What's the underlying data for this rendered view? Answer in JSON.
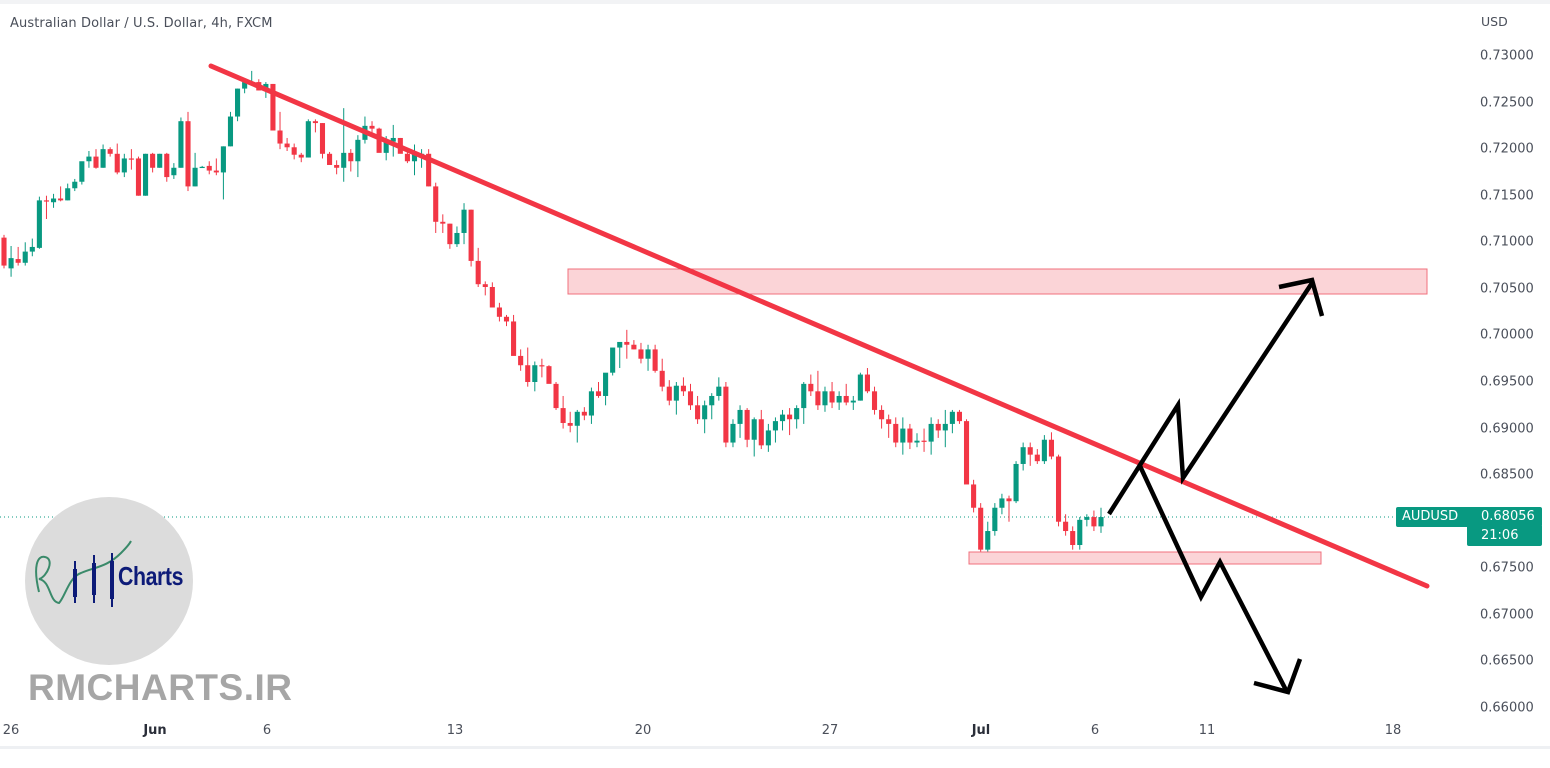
{
  "header": {
    "title": "Australian Dollar / U.S. Dollar, 4h, FXCM"
  },
  "price_axis": {
    "unit": "USD",
    "labels": [
      "0.73000",
      "0.72500",
      "0.72000",
      "0.71500",
      "0.71000",
      "0.70500",
      "0.70000",
      "0.69500",
      "0.69000",
      "0.68500",
      "0.68000",
      "0.67500",
      "0.67000",
      "0.66500",
      "0.66000"
    ]
  },
  "time_axis": {
    "labels": [
      {
        "text": "26",
        "x": 5,
        "major": false
      },
      {
        "text": "Jun",
        "x": 155,
        "major": true
      },
      {
        "text": "6",
        "x": 267,
        "major": false
      },
      {
        "text": "13",
        "x": 455,
        "major": false
      },
      {
        "text": "20",
        "x": 643,
        "major": false
      },
      {
        "text": "27",
        "x": 830,
        "major": false
      },
      {
        "text": "Jul",
        "x": 981,
        "major": true
      },
      {
        "text": "6",
        "x": 1095,
        "major": false
      },
      {
        "text": "11",
        "x": 1207,
        "major": false
      },
      {
        "text": "18",
        "x": 1393,
        "major": false
      }
    ]
  },
  "last_price": {
    "symbol": "AUDUSD",
    "price": "0.68056",
    "countdown": "21:06",
    "color": "#089981"
  },
  "colors": {
    "up": "#089981",
    "down": "#f23645",
    "trendline": "#f23645",
    "zone_fill": "#fbd4d7",
    "zone_border": "#f0707c",
    "projection": "#000000"
  },
  "watermark": {
    "logo_text": "Charts",
    "site": "RMCHARTS.IR"
  },
  "chart_data": {
    "type": "candlestick",
    "title": "Australian Dollar / U.S. Dollar, 4h, FXCM",
    "symbol": "AUDUSD",
    "timeframe": "4h",
    "source": "FXCM",
    "xlabel": "",
    "ylabel": "USD",
    "ylim": [
      0.66,
      0.73
    ],
    "y_ticks": [
      0.73,
      0.725,
      0.72,
      0.715,
      0.71,
      0.705,
      0.7,
      0.695,
      0.69,
      0.685,
      0.68,
      0.675,
      0.67,
      0.665,
      0.66
    ],
    "x_ticks": [
      "26",
      "Jun",
      "6",
      "13",
      "20",
      "27",
      "Jul",
      "6",
      "11",
      "18"
    ],
    "grid": false,
    "last_price": 0.68056,
    "candles": [
      [
        0.7105,
        0.7108,
        0.7072,
        0.7075
      ],
      [
        0.7072,
        0.7096,
        0.7063,
        0.7083
      ],
      [
        0.7082,
        0.7095,
        0.7075,
        0.7078
      ],
      [
        0.7078,
        0.71,
        0.7075,
        0.709
      ],
      [
        0.709,
        0.7104,
        0.7085,
        0.7095
      ],
      [
        0.7094,
        0.7149,
        0.7093,
        0.7145
      ],
      [
        0.7145,
        0.715,
        0.7125,
        0.7144
      ],
      [
        0.7143,
        0.7152,
        0.7137,
        0.7147
      ],
      [
        0.7147,
        0.716,
        0.7144,
        0.7145
      ],
      [
        0.7145,
        0.7163,
        0.7145,
        0.7158
      ],
      [
        0.7158,
        0.7168,
        0.7155,
        0.7165
      ],
      [
        0.7165,
        0.7185,
        0.7162,
        0.7187
      ],
      [
        0.7187,
        0.7198,
        0.718,
        0.7192
      ],
      [
        0.7192,
        0.72,
        0.7179,
        0.718
      ],
      [
        0.718,
        0.7205,
        0.718,
        0.72
      ],
      [
        0.72,
        0.7202,
        0.7192,
        0.7195
      ],
      [
        0.7195,
        0.7206,
        0.7173,
        0.7175
      ],
      [
        0.7175,
        0.7195,
        0.717,
        0.719
      ],
      [
        0.719,
        0.72,
        0.7178,
        0.7189
      ],
      [
        0.719,
        0.7192,
        0.715,
        0.715
      ],
      [
        0.715,
        0.7195,
        0.715,
        0.7195
      ],
      [
        0.7195,
        0.7196,
        0.7175,
        0.718
      ],
      [
        0.718,
        0.7195,
        0.718,
        0.7195
      ],
      [
        0.7195,
        0.7196,
        0.7165,
        0.717
      ],
      [
        0.7172,
        0.7185,
        0.7168,
        0.718
      ],
      [
        0.718,
        0.7234,
        0.718,
        0.723
      ],
      [
        0.723,
        0.724,
        0.7155,
        0.716
      ],
      [
        0.716,
        0.7196,
        0.716,
        0.718
      ],
      [
        0.718,
        0.7182,
        0.718,
        0.7181
      ],
      [
        0.7182,
        0.7187,
        0.7173,
        0.7177
      ],
      [
        0.7177,
        0.719,
        0.7172,
        0.7175
      ],
      [
        0.7175,
        0.7203,
        0.7146,
        0.7203
      ],
      [
        0.7203,
        0.724,
        0.7203,
        0.7235
      ],
      [
        0.7235,
        0.7265,
        0.723,
        0.7265
      ],
      [
        0.7265,
        0.7275,
        0.726,
        0.7272
      ],
      [
        0.7272,
        0.7284,
        0.727,
        0.7272
      ],
      [
        0.7272,
        0.7275,
        0.7263,
        0.7263
      ],
      [
        0.7263,
        0.7272,
        0.7255,
        0.727
      ],
      [
        0.727,
        0.727,
        0.722,
        0.722
      ],
      [
        0.722,
        0.724,
        0.72,
        0.7206
      ],
      [
        0.7206,
        0.7212,
        0.7198,
        0.7202
      ],
      [
        0.7202,
        0.7206,
        0.7189,
        0.7194
      ],
      [
        0.7194,
        0.7196,
        0.7186,
        0.7191
      ],
      [
        0.7191,
        0.7232,
        0.7191,
        0.723
      ],
      [
        0.723,
        0.7232,
        0.7218,
        0.7228
      ],
      [
        0.7228,
        0.7228,
        0.719,
        0.7195
      ],
      [
        0.7195,
        0.7197,
        0.7187,
        0.7183
      ],
      [
        0.7183,
        0.7188,
        0.7173,
        0.718
      ],
      [
        0.718,
        0.7244,
        0.7165,
        0.7196
      ],
      [
        0.7196,
        0.72,
        0.7176,
        0.7187
      ],
      [
        0.7187,
        0.7215,
        0.717,
        0.721
      ],
      [
        0.721,
        0.7235,
        0.7206,
        0.7225
      ],
      [
        0.7225,
        0.723,
        0.7215,
        0.7222
      ],
      [
        0.7222,
        0.7223,
        0.7198,
        0.7196
      ],
      [
        0.7196,
        0.7214,
        0.7188,
        0.7208
      ],
      [
        0.7208,
        0.7226,
        0.7192,
        0.7212
      ],
      [
        0.7212,
        0.7212,
        0.7196,
        0.7195
      ],
      [
        0.7195,
        0.7198,
        0.7185,
        0.7187
      ],
      [
        0.7187,
        0.7205,
        0.7172,
        0.7195
      ],
      [
        0.7195,
        0.72,
        0.718,
        0.7195
      ],
      [
        0.7195,
        0.72,
        0.716,
        0.716
      ],
      [
        0.716,
        0.7164,
        0.711,
        0.7122
      ],
      [
        0.7122,
        0.713,
        0.711,
        0.712
      ],
      [
        0.712,
        0.712,
        0.7093,
        0.7098
      ],
      [
        0.7098,
        0.7117,
        0.7095,
        0.711
      ],
      [
        0.711,
        0.7142,
        0.7098,
        0.7135
      ],
      [
        0.7135,
        0.7135,
        0.7074,
        0.708
      ],
      [
        0.708,
        0.7094,
        0.7052,
        0.7055
      ],
      [
        0.7055,
        0.7058,
        0.7043,
        0.7052
      ],
      [
        0.7052,
        0.7057,
        0.7035,
        0.703
      ],
      [
        0.703,
        0.7035,
        0.7015,
        0.702
      ],
      [
        0.702,
        0.7022,
        0.701,
        0.7015
      ],
      [
        0.7015,
        0.7022,
        0.698,
        0.6978
      ],
      [
        0.6978,
        0.6985,
        0.6962,
        0.6968
      ],
      [
        0.6968,
        0.6987,
        0.6945,
        0.695
      ],
      [
        0.695,
        0.6972,
        0.694,
        0.6968
      ],
      [
        0.6968,
        0.6975,
        0.6955,
        0.6967
      ],
      [
        0.6967,
        0.6968,
        0.695,
        0.6948
      ],
      [
        0.6948,
        0.695,
        0.692,
        0.6922
      ],
      [
        0.6922,
        0.6935,
        0.69,
        0.6906
      ],
      [
        0.6906,
        0.6918,
        0.6896,
        0.6903
      ],
      [
        0.6903,
        0.692,
        0.6885,
        0.6918
      ],
      [
        0.6918,
        0.6923,
        0.6909,
        0.6914
      ],
      [
        0.6914,
        0.6944,
        0.6905,
        0.694
      ],
      [
        0.694,
        0.695,
        0.6933,
        0.6935
      ],
      [
        0.6935,
        0.6955,
        0.6925,
        0.696
      ],
      [
        0.696,
        0.6963,
        0.6957,
        0.6987
      ],
      [
        0.6987,
        0.699,
        0.6965,
        0.6993
      ],
      [
        0.6993,
        0.7006,
        0.6975,
        0.699
      ],
      [
        0.699,
        0.6995,
        0.6985,
        0.6985
      ]
    ]
  }
}
